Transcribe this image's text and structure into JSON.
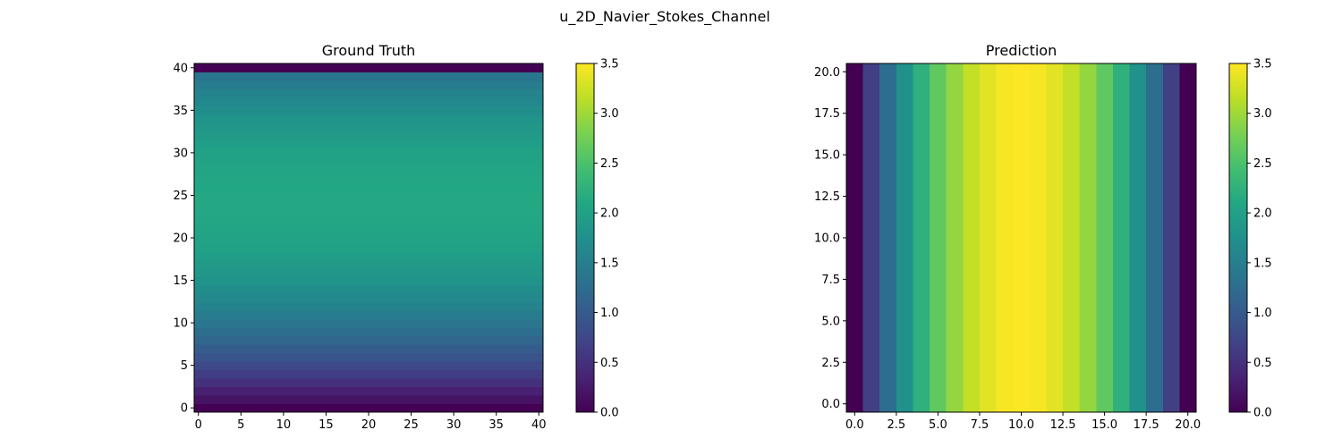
{
  "title": "u_2D_Navier_Stokes_Channel",
  "chart_data": [
    {
      "type": "heatmap",
      "title": "Ground Truth",
      "colormap": "viridis",
      "grid": false,
      "varies_along": "y",
      "cells": 41,
      "xlim": [
        -0.5,
        40.5
      ],
      "ylim": [
        -0.5,
        40.5
      ],
      "xticks": [
        0,
        5,
        10,
        15,
        20,
        25,
        30,
        35,
        40
      ],
      "xtick_labels": [
        "0",
        "5",
        "10",
        "15",
        "20",
        "25",
        "30",
        "35",
        "40"
      ],
      "yticks": [
        0,
        5,
        10,
        15,
        20,
        25,
        30,
        35,
        40
      ],
      "ytick_labels": [
        "0",
        "5",
        "10",
        "15",
        "20",
        "25",
        "30",
        "35",
        "40"
      ],
      "values": [
        0.0,
        0.1708,
        0.333,
        0.4882,
        0.6363,
        0.7773,
        0.9113,
        1.0382,
        1.158,
        1.2707,
        1.3763,
        1.4748,
        1.5663,
        1.6506,
        1.728,
        1.7982,
        1.8613,
        1.9174,
        1.9664,
        2.0084,
        2.0432,
        2.071,
        2.0917,
        2.1054,
        2.112,
        2.1115,
        2.1039,
        2.0893,
        2.0676,
        2.0388,
        2.003,
        1.96,
        1.91,
        1.8529,
        1.7888,
        1.7175,
        1.6392,
        1.5538,
        1.4614,
        1.3618,
        0.0
      ],
      "colorbar": {
        "range": [
          0.0,
          3.5
        ],
        "ticks": [
          0.0,
          0.5,
          1.0,
          1.5,
          2.0,
          2.5,
          3.0,
          3.5
        ],
        "tick_labels": [
          "0.0",
          "0.5",
          "1.0",
          "1.5",
          "2.0",
          "2.5",
          "3.0",
          "3.5"
        ]
      }
    },
    {
      "type": "heatmap",
      "title": "Prediction",
      "colormap": "viridis",
      "grid": false,
      "varies_along": "x",
      "cells": 21,
      "xlim": [
        -0.5,
        20.5
      ],
      "ylim": [
        -0.5,
        20.5
      ],
      "xticks": [
        0,
        2.5,
        5,
        7.5,
        10,
        12.5,
        15,
        17.5,
        20
      ],
      "xtick_labels": [
        "0.0",
        "2.5",
        "5.0",
        "7.5",
        "10.0",
        "12.5",
        "15.0",
        "17.5",
        "20.0"
      ],
      "yticks": [
        0,
        2.5,
        5,
        7.5,
        10,
        12.5,
        15,
        17.5,
        20
      ],
      "ytick_labels": [
        "0.0",
        "2.5",
        "5.0",
        "7.5",
        "10.0",
        "12.5",
        "15.0",
        "17.5",
        "20.0"
      ],
      "values": [
        0.0,
        0.665,
        1.26,
        1.785,
        2.24,
        2.625,
        2.94,
        3.185,
        3.36,
        3.465,
        3.5,
        3.465,
        3.36,
        3.185,
        2.94,
        2.625,
        2.24,
        1.785,
        1.26,
        0.665,
        0.0
      ],
      "colorbar": {
        "range": [
          0.0,
          3.5
        ],
        "ticks": [
          0.0,
          0.5,
          1.0,
          1.5,
          2.0,
          2.5,
          3.0,
          3.5
        ],
        "tick_labels": [
          "0.0",
          "0.5",
          "1.0",
          "1.5",
          "2.0",
          "2.5",
          "3.0",
          "3.5"
        ]
      }
    }
  ]
}
